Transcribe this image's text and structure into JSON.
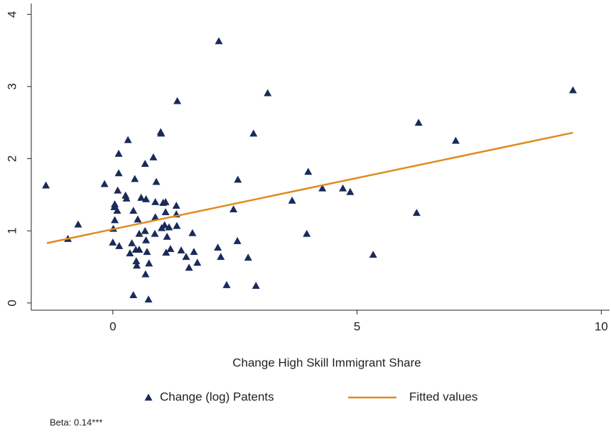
{
  "chart_data": {
    "type": "scatter",
    "x_label": "Change High Skill Immigrant Share",
    "note": "Beta: 0.14***",
    "xlim": [
      -1.67,
      10.17
    ],
    "ylim": [
      -0.1,
      4.15
    ],
    "xticks": [
      0,
      5,
      10
    ],
    "yticks": [
      0,
      1,
      2,
      3,
      4
    ],
    "grid": false,
    "legend": "bottom",
    "series": [
      {
        "name": "Change (log) Patents",
        "type": "scatter",
        "color": "#1a2a5a",
        "x": [
          -1.37,
          -0.92,
          -0.71,
          -0.17,
          0.04,
          0.03,
          0.09,
          0.01,
          0,
          0.1,
          0.12,
          0.12,
          0.13,
          0.04,
          0.31,
          0.26,
          0.28,
          0.35,
          0.39,
          0.42,
          0.45,
          0.47,
          0.48,
          0.49,
          0.42,
          0.51,
          0.54,
          0.54,
          0.58,
          0.66,
          0.68,
          0.66,
          0.68,
          0.7,
          0.67,
          0.74,
          0.73,
          0.83,
          0.89,
          0.87,
          0.87,
          0.86,
          0.99,
          0.98,
          1.03,
          1.08,
          1.08,
          1.06,
          1.0,
          1.09,
          1.11,
          1.15,
          1.18,
          1.3,
          1.3,
          1.31,
          1.32,
          1.4,
          1.5,
          1.56,
          1.63,
          1.66,
          1.73,
          2.17,
          2.15,
          2.21,
          2.33,
          2.47,
          2.56,
          2.55,
          2.77,
          2.88,
          2.93,
          3.17,
          3.67,
          3.97,
          4.0,
          4.29,
          4.71,
          4.86,
          5.33,
          6.22,
          6.26,
          7.02,
          9.42
        ],
        "values": [
          1.63,
          0.89,
          1.09,
          1.65,
          1.37,
          1.33,
          1.28,
          1.03,
          0.84,
          1.56,
          1.8,
          2.07,
          0.79,
          1.15,
          2.26,
          1.49,
          1.45,
          0.69,
          0.83,
          1.28,
          1.72,
          0.74,
          0.58,
          0.52,
          0.11,
          1.16,
          0.96,
          0.74,
          1.46,
          1.93,
          1.44,
          1.0,
          0.87,
          0.71,
          0.4,
          0.55,
          0.05,
          2.02,
          1.68,
          1.4,
          1.19,
          0.96,
          2.35,
          2.37,
          1.39,
          1.4,
          1.26,
          1.08,
          1.04,
          0.7,
          0.92,
          1.05,
          0.75,
          1.35,
          1.23,
          1.07,
          2.8,
          0.73,
          0.64,
          0.49,
          0.97,
          0.71,
          0.56,
          3.63,
          0.77,
          0.64,
          0.25,
          1.3,
          1.71,
          0.86,
          0.63,
          2.35,
          0.24,
          2.91,
          1.42,
          0.96,
          1.82,
          1.59,
          1.59,
          1.54,
          0.67,
          1.25,
          2.5,
          2.25,
          2.95
        ]
      },
      {
        "name": "Fitted values",
        "type": "line",
        "color": "#e08a1e",
        "x": [
          -1.35,
          9.42
        ],
        "values": [
          0.83,
          2.36
        ]
      }
    ]
  }
}
